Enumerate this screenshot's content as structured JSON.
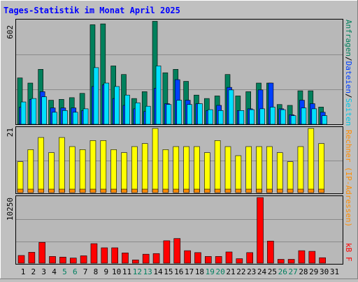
{
  "chart_data": [
    {
      "type": "bar",
      "title": "Tages-Statistik im Monat April 2025",
      "ymax_label": "602",
      "ylim": [
        0,
        602
      ],
      "legend_label": "Anfragen/Dateien/Seiten",
      "legend_parts": [
        "Anfragen",
        "/",
        "Dateien",
        "/",
        "Seiten"
      ],
      "categories": [
        "1",
        "2",
        "3",
        "4",
        "5",
        "6",
        "7",
        "8",
        "9",
        "10",
        "11",
        "12",
        "13",
        "14",
        "15",
        "16",
        "17",
        "18",
        "19",
        "20",
        "21",
        "22",
        "23",
        "24",
        "25",
        "26",
        "27",
        "28",
        "29",
        "30",
        "31"
      ],
      "weekend_days": [
        "5",
        "6",
        "12",
        "13",
        "19",
        "20",
        "26",
        "27"
      ],
      "series": [
        {
          "name": "Anfragen",
          "color": "#00805c",
          "values": [
            270,
            240,
            320,
            140,
            145,
            155,
            180,
            580,
            585,
            340,
            290,
            150,
            190,
            600,
            300,
            320,
            250,
            170,
            150,
            165,
            290,
            165,
            190,
            240,
            240,
            115,
            110,
            195,
            195,
            100,
            0
          ]
        },
        {
          "name": "Dateien",
          "color": "#0040ff",
          "values": [
            100,
            145,
            190,
            95,
            95,
            95,
            80,
            220,
            230,
            150,
            110,
            90,
            75,
            210,
            120,
            260,
            140,
            120,
            80,
            110,
            215,
            80,
            90,
            200,
            240,
            90,
            55,
            140,
            120,
            70,
            0
          ]
        },
        {
          "name": "Seiten",
          "color": "#00e0ff",
          "values": [
            130,
            150,
            160,
            70,
            80,
            70,
            90,
            330,
            240,
            220,
            170,
            125,
            105,
            340,
            115,
            140,
            115,
            120,
            85,
            80,
            200,
            80,
            85,
            90,
            100,
            85,
            50,
            95,
            90,
            50,
            0
          ]
        }
      ]
    },
    {
      "type": "bar",
      "ymax_label": "21",
      "ylim": [
        0,
        21
      ],
      "legend_label": "Rechner (IP-Adressen)",
      "categories": [
        "1",
        "2",
        "3",
        "4",
        "5",
        "6",
        "7",
        "8",
        "9",
        "10",
        "11",
        "12",
        "13",
        "14",
        "15",
        "16",
        "17",
        "18",
        "19",
        "20",
        "21",
        "22",
        "23",
        "24",
        "25",
        "26",
        "27",
        "28",
        "29",
        "30",
        "31"
      ],
      "series": [
        {
          "name": "Rechner (IP-Adressen)",
          "color": "#ffff00",
          "values": [
            10,
            14,
            18,
            13,
            18,
            15,
            14,
            17,
            17,
            14,
            13,
            15,
            16,
            21,
            14,
            15,
            15,
            15,
            13,
            17,
            15,
            12,
            15,
            15,
            15,
            13,
            10,
            15,
            21,
            16,
            0
          ]
        },
        {
          "name": "",
          "color": "#ff8c00",
          "values": [
            1,
            1,
            1,
            1,
            1,
            1,
            1,
            1,
            1,
            1,
            1,
            1,
            1,
            1,
            1,
            1,
            1,
            1,
            1,
            1,
            1,
            1,
            1,
            1,
            1,
            1,
            1,
            1,
            1,
            1,
            0
          ]
        }
      ]
    },
    {
      "type": "bar",
      "ymax_label": "10250",
      "ylim": [
        0,
        10250
      ],
      "legend_label": "kB F",
      "categories": [
        "1",
        "2",
        "3",
        "4",
        "5",
        "6",
        "7",
        "8",
        "9",
        "10",
        "11",
        "12",
        "13",
        "14",
        "15",
        "16",
        "17",
        "18",
        "19",
        "20",
        "21",
        "22",
        "23",
        "24",
        "25",
        "26",
        "27",
        "28",
        "29",
        "30",
        "31"
      ],
      "series": [
        {
          "name": "kB F",
          "color": "#ff0000",
          "values": [
            1200,
            1700,
            3250,
            1050,
            950,
            800,
            1150,
            3050,
            2400,
            2400,
            1600,
            500,
            1400,
            1500,
            3500,
            3850,
            1950,
            1650,
            1050,
            1050,
            1750,
            700,
            1650,
            10250,
            3450,
            600,
            600,
            1950,
            1850,
            850,
            0
          ]
        }
      ]
    }
  ]
}
